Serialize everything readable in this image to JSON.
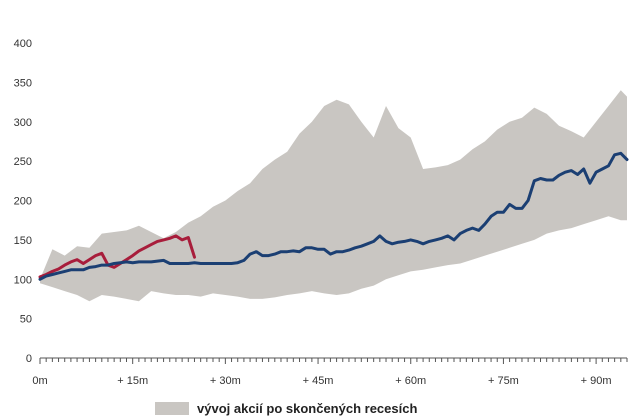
{
  "chart_data": {
    "type": "line",
    "title": "",
    "xlabel": "",
    "ylabel": "",
    "xlim": [
      0,
      95
    ],
    "ylim": [
      0,
      400
    ],
    "y_ticks": [
      0,
      50,
      100,
      150,
      200,
      250,
      300,
      350,
      400
    ],
    "x_ticks": [
      {
        "value": 0,
        "label": "0m"
      },
      {
        "value": 15,
        "label": "+ 15m"
      },
      {
        "value": 30,
        "label": "+ 30m"
      },
      {
        "value": 45,
        "label": "+ 45m"
      },
      {
        "value": 60,
        "label": "+ 60m"
      },
      {
        "value": 75,
        "label": "+ 75m"
      },
      {
        "value": 90,
        "label": "+ 90m"
      }
    ],
    "grid": false,
    "legend": {
      "placement": "bottom-center",
      "entries": [
        {
          "label": "vývoj akcií po skončených recesích",
          "type": "band"
        }
      ]
    },
    "colors": {
      "band": "#c9c6c2",
      "median": "#1b3f73",
      "current": "#a81d3b",
      "axis": "#555555"
    },
    "band": {
      "x": [
        0,
        2,
        4,
        6,
        8,
        10,
        12,
        14,
        16,
        18,
        20,
        22,
        24,
        26,
        28,
        30,
        32,
        34,
        36,
        38,
        40,
        42,
        44,
        46,
        48,
        50,
        52,
        54,
        56,
        58,
        60,
        62,
        64,
        66,
        68,
        70,
        72,
        74,
        76,
        78,
        80,
        82,
        84,
        86,
        88,
        90,
        92,
        94,
        95
      ],
      "upper": [
        100,
        138,
        130,
        142,
        140,
        158,
        160,
        162,
        168,
        160,
        152,
        160,
        172,
        180,
        192,
        200,
        212,
        222,
        240,
        252,
        262,
        285,
        300,
        320,
        328,
        322,
        300,
        280,
        320,
        292,
        280,
        240,
        242,
        245,
        252,
        265,
        275,
        290,
        300,
        305,
        318,
        310,
        295,
        288,
        280,
        300,
        320,
        340,
        332
      ],
      "lower": [
        95,
        90,
        85,
        80,
        72,
        80,
        78,
        75,
        72,
        85,
        82,
        80,
        80,
        78,
        82,
        80,
        78,
        75,
        75,
        77,
        80,
        82,
        85,
        82,
        80,
        82,
        88,
        92,
        100,
        105,
        110,
        112,
        115,
        118,
        120,
        125,
        130,
        135,
        140,
        145,
        150,
        158,
        162,
        165,
        170,
        175,
        180,
        175,
        175
      ]
    },
    "series": [
      {
        "role": "median",
        "x": [
          0,
          1,
          2,
          3,
          4,
          5,
          6,
          7,
          8,
          9,
          10,
          11,
          12,
          13,
          14,
          15,
          16,
          17,
          18,
          19,
          20,
          21,
          22,
          23,
          24,
          25,
          26,
          27,
          28,
          29,
          30,
          31,
          32,
          33,
          34,
          35,
          36,
          37,
          38,
          39,
          40,
          41,
          42,
          43,
          44,
          45,
          46,
          47,
          48,
          49,
          50,
          51,
          52,
          53,
          54,
          55,
          56,
          57,
          58,
          59,
          60,
          61,
          62,
          63,
          64,
          65,
          66,
          67,
          68,
          69,
          70,
          71,
          72,
          73,
          74,
          75,
          76,
          77,
          78,
          79,
          80,
          81,
          82,
          83,
          84,
          85,
          86,
          87,
          88,
          89,
          90,
          91,
          92,
          93,
          94,
          95
        ],
        "values": [
          100,
          104,
          106,
          108,
          110,
          112,
          112,
          112,
          115,
          116,
          118,
          118,
          120,
          121,
          122,
          121,
          122,
          122,
          122,
          123,
          124,
          120,
          120,
          120,
          120,
          121,
          120,
          120,
          120,
          120,
          120,
          120,
          121,
          124,
          132,
          135,
          130,
          130,
          132,
          135,
          135,
          136,
          135,
          140,
          140,
          138,
          138,
          132,
          135,
          135,
          137,
          140,
          142,
          145,
          148,
          155,
          148,
          145,
          147,
          148,
          150,
          148,
          145,
          148,
          150,
          152,
          155,
          150,
          158,
          162,
          165,
          162,
          170,
          180,
          185,
          185,
          195,
          190,
          190,
          200,
          225,
          228,
          226,
          226,
          232,
          236,
          238,
          233,
          240,
          222,
          236,
          240,
          244,
          258,
          260,
          252
        ]
      },
      {
        "role": "current",
        "x": [
          0,
          1,
          2,
          3,
          4,
          5,
          6,
          7,
          8,
          9,
          10,
          11,
          12,
          13,
          14,
          15,
          16,
          17,
          18,
          19,
          20,
          21,
          22,
          23,
          24,
          25
        ],
        "values": [
          103,
          106,
          110,
          113,
          118,
          122,
          125,
          120,
          125,
          130,
          133,
          118,
          115,
          120,
          125,
          130,
          136,
          140,
          144,
          148,
          150,
          152,
          155,
          150,
          153,
          128
        ]
      }
    ]
  }
}
